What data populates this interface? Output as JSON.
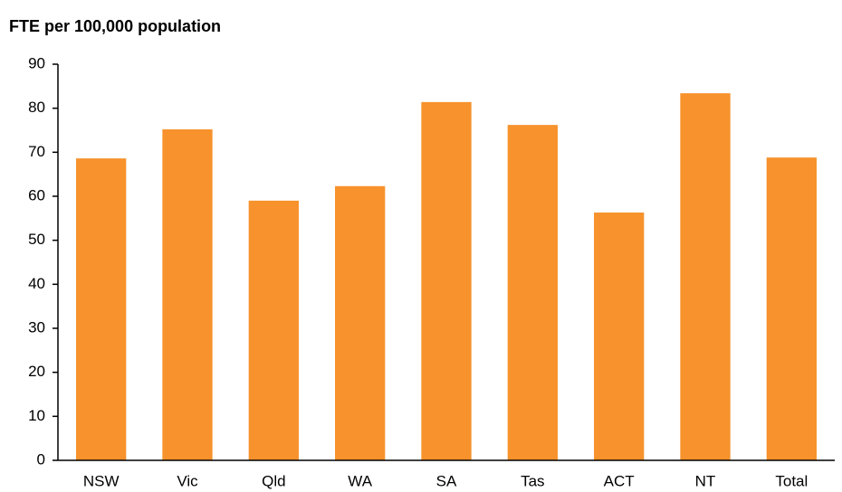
{
  "chart_data": {
    "type": "bar",
    "title": "FTE per 100,000 population",
    "categories": [
      "NSW",
      "Vic",
      "Qld",
      "WA",
      "SA",
      "Tas",
      "ACT",
      "NT",
      "Total"
    ],
    "values": [
      68.6,
      75.2,
      59.0,
      62.3,
      81.4,
      76.2,
      56.3,
      83.4,
      68.8
    ],
    "color": "#f7922c",
    "ylim": [
      0,
      90
    ],
    "yticks": [
      0,
      10,
      20,
      30,
      40,
      50,
      60,
      70,
      80,
      90
    ],
    "grid": false
  }
}
